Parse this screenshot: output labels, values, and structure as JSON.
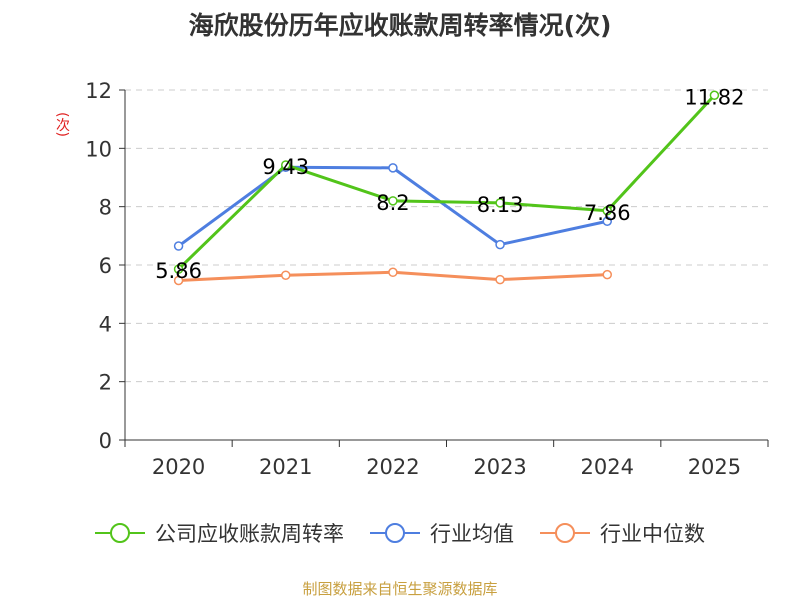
{
  "chart_data": {
    "type": "line",
    "title": "海欣股份历年应收账款周转率情况(次)",
    "ylabel": "(次)",
    "categories": [
      "2020",
      "2021",
      "2022",
      "2023",
      "2024",
      "2025"
    ],
    "ylim": [
      0,
      12
    ],
    "yticks": [
      0,
      2,
      4,
      6,
      8,
      10,
      12
    ],
    "grid": true,
    "legend_position": "bottom",
    "series": [
      {
        "name": "公司应收账款周转率",
        "color": "#52c41a",
        "values": [
          5.86,
          9.43,
          8.2,
          8.13,
          7.86,
          11.82
        ],
        "labels": [
          "5.86",
          "9.43",
          "8.2",
          "8.13",
          "7.86",
          "11.82"
        ]
      },
      {
        "name": "行业均值",
        "color": "#4e7ee0",
        "values": [
          6.65,
          9.35,
          9.33,
          6.7,
          7.5,
          null
        ]
      },
      {
        "name": "行业中位数",
        "color": "#f58f5b",
        "values": [
          5.47,
          5.65,
          5.75,
          5.5,
          5.67,
          null
        ]
      }
    ]
  },
  "source": "制图数据来自恒生聚源数据库"
}
